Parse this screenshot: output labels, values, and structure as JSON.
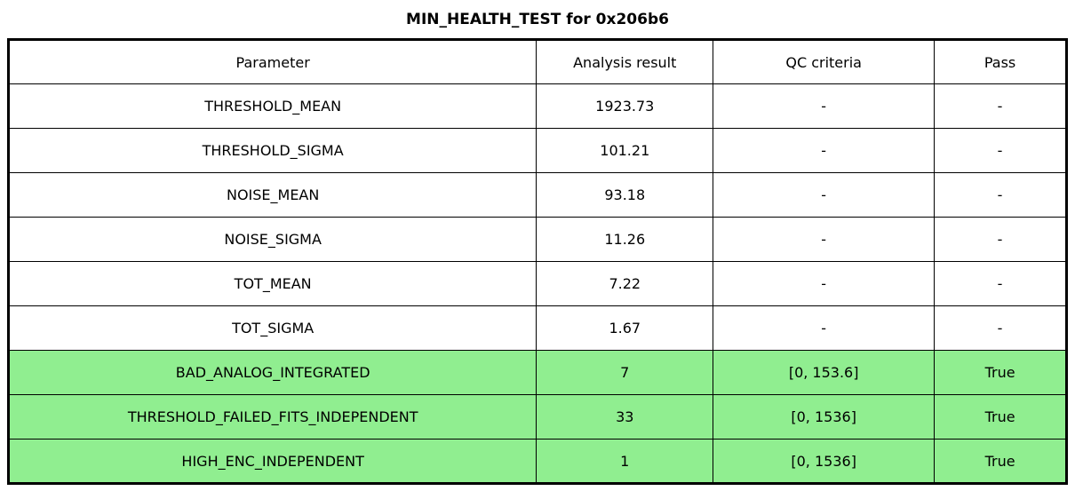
{
  "chart_data": {
    "type": "table",
    "title": "MIN_HEALTH_TEST for 0x206b6",
    "columns": [
      "Parameter",
      "Analysis result",
      "QC criteria",
      "Pass"
    ],
    "rows": [
      {
        "parameter": "THRESHOLD_MEAN",
        "analysis_result": "1923.73",
        "qc_criteria": "-",
        "pass": "-",
        "highlighted": false
      },
      {
        "parameter": "THRESHOLD_SIGMA",
        "analysis_result": "101.21",
        "qc_criteria": "-",
        "pass": "-",
        "highlighted": false
      },
      {
        "parameter": "NOISE_MEAN",
        "analysis_result": "93.18",
        "qc_criteria": "-",
        "pass": "-",
        "highlighted": false
      },
      {
        "parameter": "NOISE_SIGMA",
        "analysis_result": "11.26",
        "qc_criteria": "-",
        "pass": "-",
        "highlighted": false
      },
      {
        "parameter": "TOT_MEAN",
        "analysis_result": "7.22",
        "qc_criteria": "-",
        "pass": "-",
        "highlighted": false
      },
      {
        "parameter": "TOT_SIGMA",
        "analysis_result": "1.67",
        "qc_criteria": "-",
        "pass": "-",
        "highlighted": false
      },
      {
        "parameter": "BAD_ANALOG_INTEGRATED",
        "analysis_result": "7",
        "qc_criteria": "[0, 153.6]",
        "pass": "True",
        "highlighted": true
      },
      {
        "parameter": "THRESHOLD_FAILED_FITS_INDEPENDENT",
        "analysis_result": "33",
        "qc_criteria": "[0, 1536]",
        "pass": "True",
        "highlighted": true
      },
      {
        "parameter": "HIGH_ENC_INDEPENDENT",
        "analysis_result": "1",
        "qc_criteria": "[0, 1536]",
        "pass": "True",
        "highlighted": true
      }
    ],
    "colors": {
      "pass_row_background": "#90EE90",
      "border": "#000000",
      "background": "#FFFFFF"
    },
    "layout": {
      "legend": "none",
      "grid": "full-cell-borders",
      "highlight_meaning": "rows with QC criteria evaluated and passing are filled green"
    }
  }
}
